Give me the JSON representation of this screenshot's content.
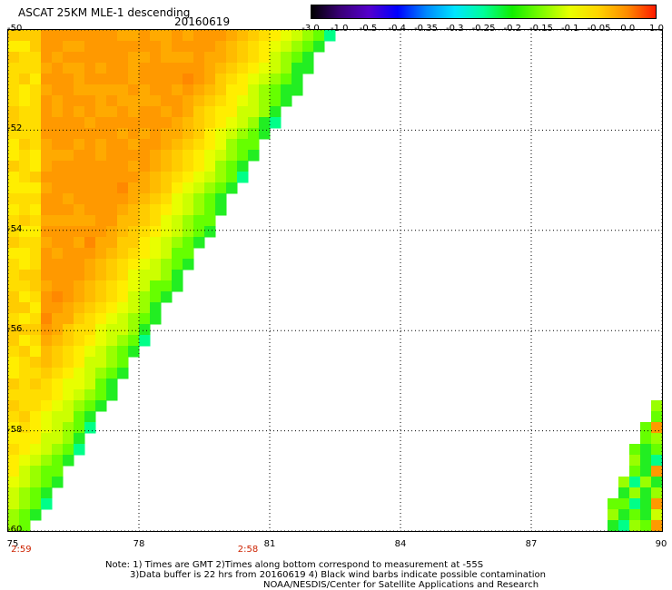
{
  "title": "ASCAT 25KM MLE-1 descending",
  "date": "20160619",
  "colorbar": {
    "labels": [
      "-3.0",
      "-1.0",
      "-0.5",
      "-0.4",
      "-0.35",
      "-0.3",
      "-0.25",
      "-0.2",
      "-0.15",
      "-0.1",
      "-0.05",
      "0.0",
      "1.0"
    ],
    "colors": [
      "#000000",
      "#3a0077",
      "#5500cc",
      "#0000ff",
      "#0088ff",
      "#00e5ff",
      "#00ff99",
      "#11ee00",
      "#7cfc00",
      "#e8ff00",
      "#ffd400",
      "#ff8c00",
      "#ff1a00"
    ]
  },
  "lat_labels": [
    "-50",
    "-52",
    "-54",
    "-56",
    "-58",
    "-60"
  ],
  "lon_labels": [
    "75",
    "78",
    "81",
    "84",
    "87",
    "90"
  ],
  "time_labels": [
    "2:59",
    "2:58"
  ],
  "notes": {
    "line1": "Note: 1) Times are GMT 2)Times along bottom correspond to measurement at -55S",
    "line2": "3)Data buffer is 22 hrs from 20160619 4) Black wind barbs indicate possible contamination",
    "line3": "NOAA/NESDIS/Center for Satellite Applications and Research"
  },
  "map_data": {
    "lon_range": [
      75,
      90
    ],
    "lat_range": [
      -60,
      -50
    ],
    "grid_lons": [
      75,
      78,
      81,
      84,
      87,
      90
    ],
    "grid_lats": [
      -50,
      -52,
      -54,
      -56,
      -58,
      -60
    ],
    "swath_left": "west swath from 75E to diagonal edge ~82.5E at -50 down to ~75.5E at -60",
    "swath_right": "east swath corner 88.5E-90E between -57.5 and -60"
  }
}
